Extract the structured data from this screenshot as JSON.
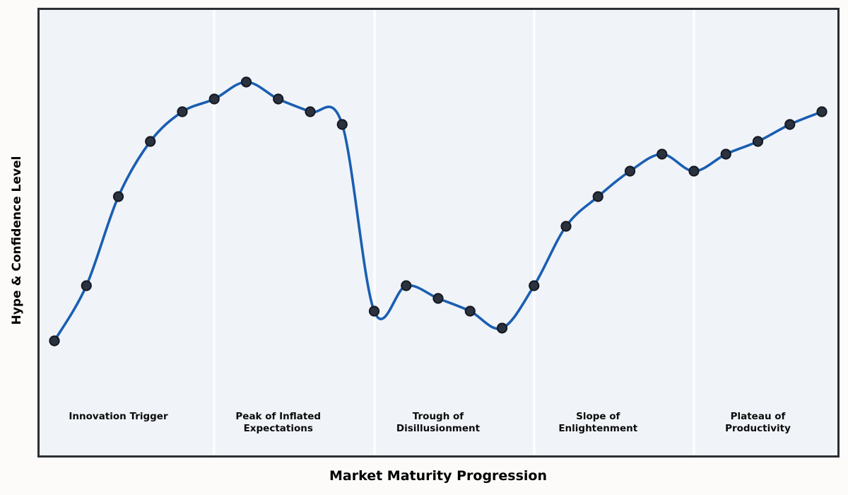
{
  "chart_data": {
    "type": "line",
    "title": "",
    "xlabel": "Market Maturity Progression",
    "ylabel": "Hype & Confidence Level",
    "x": [
      0,
      1,
      2,
      3,
      4,
      5,
      6,
      7,
      8,
      9,
      10,
      11,
      12,
      13,
      14,
      15,
      16,
      17,
      18,
      19,
      20,
      21,
      22,
      23,
      24
    ],
    "series": [
      {
        "name": "Hype & Confidence Level",
        "values": [
          27,
          40,
          61,
          74,
          81,
          84,
          88,
          84,
          81,
          78,
          34,
          40,
          37,
          34,
          30,
          40,
          54,
          61,
          67,
          71,
          67,
          71,
          74,
          78,
          81
        ]
      }
    ],
    "xlim": [
      -0.5,
      24.5
    ],
    "ylim": [
      0,
      105
    ],
    "grid": false,
    "legend_position": "none",
    "line_style": "smooth-cubic-spline",
    "marker": "circle",
    "axis_ticks": "none",
    "phases": [
      {
        "label": "Innovation Trigger",
        "display": "Innovation Trigger",
        "center_x": 2,
        "boundary_start_x": -0.5
      },
      {
        "label": "Peak of Inflated Expectations",
        "display": "Peak of Inflated\nExpectations",
        "center_x": 7,
        "boundary_start_x": 5
      },
      {
        "label": "Trough of Disillusionment",
        "display": "Trough of\nDisillusionment",
        "center_x": 12,
        "boundary_start_x": 10
      },
      {
        "label": "Slope of Enlightenment",
        "display": "Slope of\nEnlightenment",
        "center_x": 17,
        "boundary_start_x": 15
      },
      {
        "label": "Plateau of Productivity",
        "display": "Plateau of\nProductivity",
        "center_x": 22,
        "boundary_start_x": 20
      }
    ],
    "colors": {
      "line": "#1b5eb2",
      "marker_fill": "#2a3240",
      "marker_edge": "#14181f",
      "plot_background": "#f0f4f8",
      "phase_separator": "#ffffff",
      "plot_border": "#2b2e33",
      "figure_background": "#fcfbf9",
      "label_text": "#0b0b0b"
    }
  }
}
